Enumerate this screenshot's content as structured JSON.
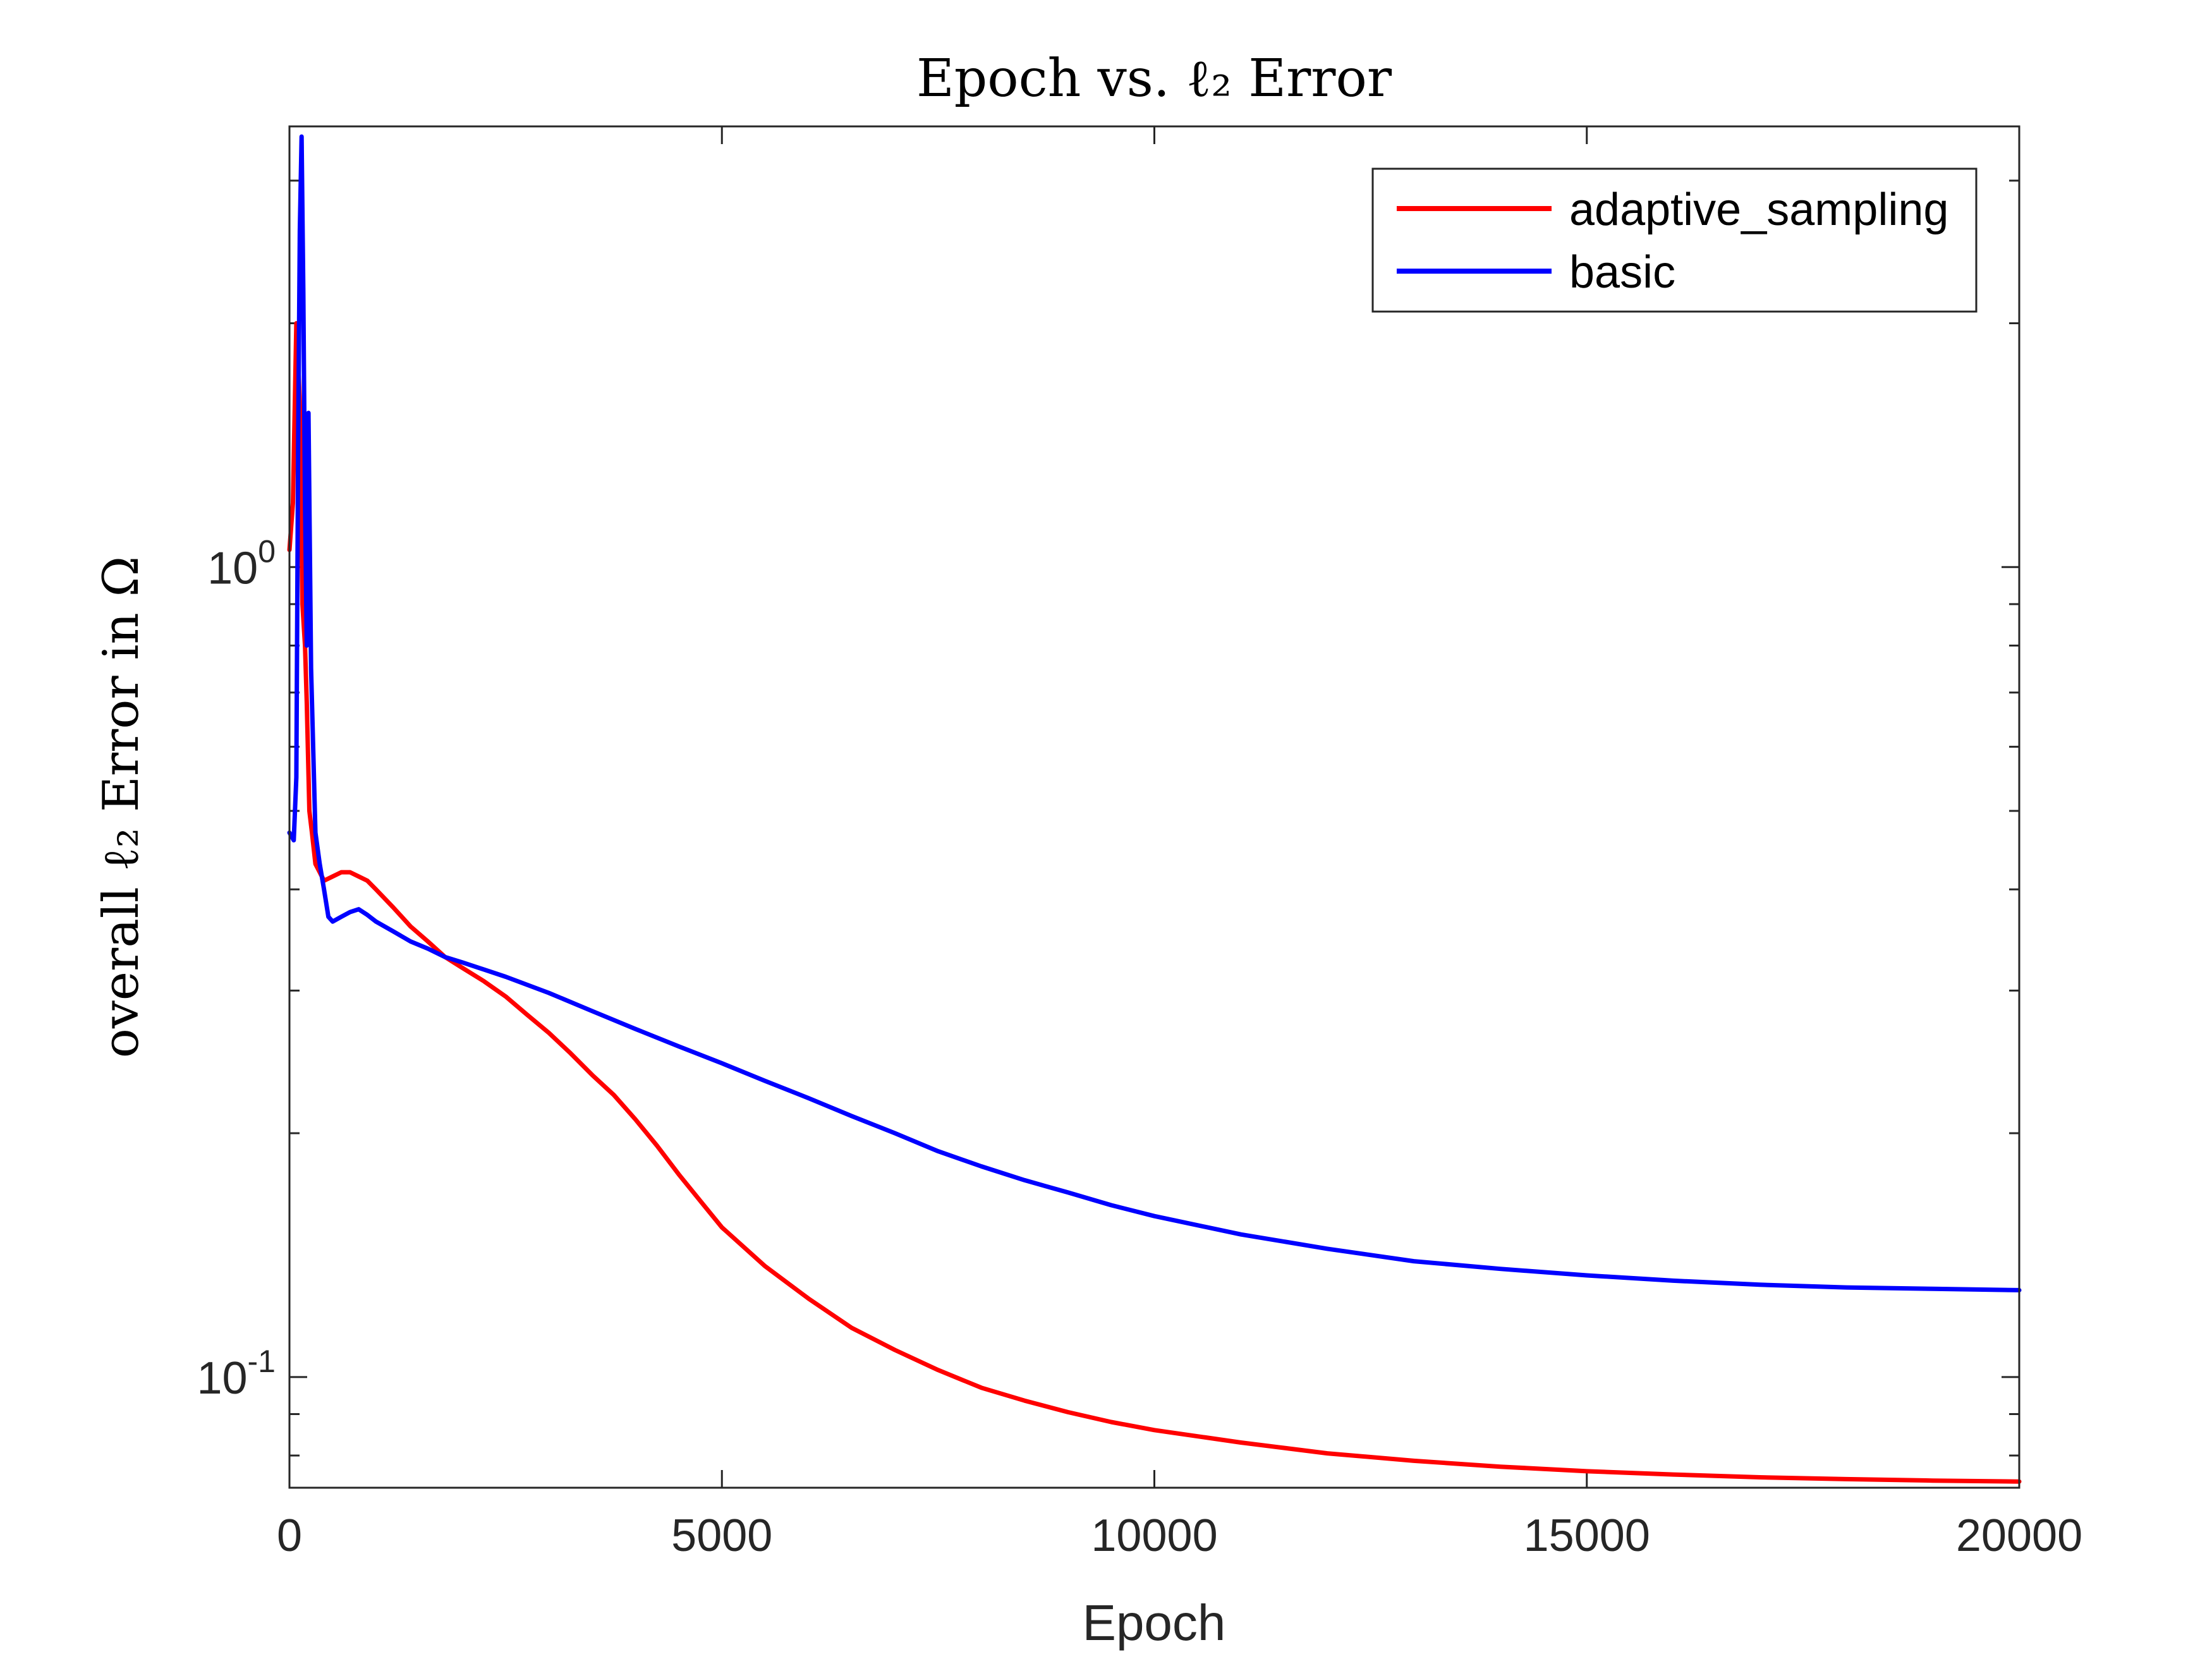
{
  "chart_data": {
    "type": "line",
    "title": "Epoch vs. ℓ₂ Error",
    "xlabel": "Epoch",
    "ylabel": "overall ℓ₂ Error in Ω",
    "yscale": "log",
    "xlim": [
      0,
      20000
    ],
    "ylim": [
      0.073,
      3.5
    ],
    "xticks": [
      0,
      5000,
      10000,
      15000,
      20000
    ],
    "xtick_labels": [
      "0",
      "5000",
      "10000",
      "15000",
      "20000"
    ],
    "yticks": [
      0.1,
      1
    ],
    "ytick_labels": [
      {
        "base": "10",
        "exp": "-1"
      },
      {
        "base": "10",
        "exp": "0"
      }
    ],
    "grid": false,
    "legend_position": "top-right",
    "series": [
      {
        "name": "adaptive_sampling",
        "color": "#ff0000",
        "x": [
          0,
          40,
          80,
          120,
          150,
          180,
          200,
          230,
          260,
          300,
          350,
          400,
          500,
          600,
          700,
          800,
          900,
          1000,
          1200,
          1400,
          1600,
          1800,
          2000,
          2250,
          2500,
          2750,
          3000,
          3250,
          3500,
          3750,
          4000,
          4250,
          4500,
          4750,
          5000,
          5500,
          6000,
          6500,
          7000,
          7500,
          8000,
          8500,
          9000,
          9500,
          10000,
          11000,
          12000,
          13000,
          14000,
          15000,
          16000,
          17000,
          18000,
          19000,
          20000
        ],
        "y": [
          1.05,
          1.2,
          2.0,
          1.6,
          0.9,
          0.8,
          0.68,
          0.5,
          0.47,
          0.43,
          0.42,
          0.41,
          0.415,
          0.42,
          0.42,
          0.415,
          0.41,
          0.4,
          0.38,
          0.36,
          0.345,
          0.33,
          0.32,
          0.308,
          0.295,
          0.28,
          0.266,
          0.251,
          0.236,
          0.223,
          0.208,
          0.193,
          0.178,
          0.165,
          0.153,
          0.137,
          0.125,
          0.115,
          0.108,
          0.102,
          0.097,
          0.0935,
          0.0905,
          0.088,
          0.086,
          0.083,
          0.0805,
          0.0788,
          0.0775,
          0.0765,
          0.0758,
          0.0752,
          0.0748,
          0.0745,
          0.0743
        ]
      },
      {
        "name": "basic",
        "color": "#0000ff",
        "x": [
          0,
          50,
          80,
          100,
          120,
          140,
          160,
          180,
          200,
          220,
          250,
          300,
          350,
          400,
          450,
          500,
          600,
          700,
          800,
          900,
          1000,
          1200,
          1400,
          1600,
          1800,
          2000,
          2500,
          3000,
          3500,
          4000,
          4500,
          5000,
          5500,
          6000,
          6500,
          7000,
          7500,
          8000,
          8500,
          9000,
          9500,
          10000,
          11000,
          12000,
          13000,
          14000,
          15000,
          16000,
          17000,
          18000,
          19000,
          20000
        ],
        "y": [
          0.47,
          0.46,
          0.55,
          1.4,
          2.6,
          3.4,
          2.2,
          1.2,
          0.8,
          1.55,
          0.75,
          0.47,
          0.43,
          0.4,
          0.37,
          0.365,
          0.37,
          0.375,
          0.378,
          0.372,
          0.365,
          0.355,
          0.345,
          0.338,
          0.33,
          0.325,
          0.312,
          0.298,
          0.283,
          0.269,
          0.256,
          0.244,
          0.232,
          0.221,
          0.21,
          0.2,
          0.19,
          0.182,
          0.175,
          0.169,
          0.163,
          0.158,
          0.15,
          0.144,
          0.139,
          0.136,
          0.1335,
          0.1315,
          0.13,
          0.129,
          0.1285,
          0.128
        ]
      }
    ]
  }
}
